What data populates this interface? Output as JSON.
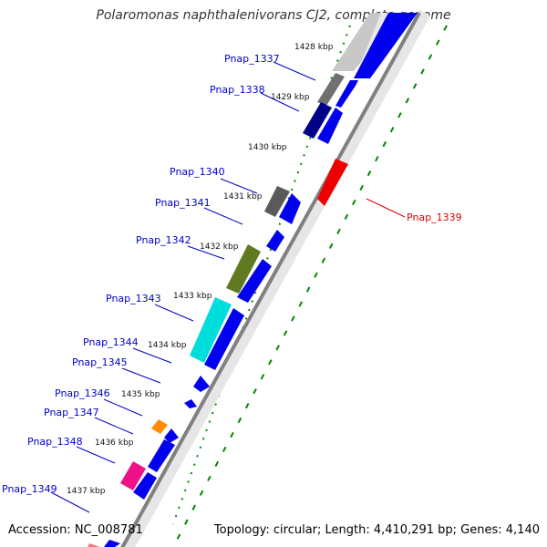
{
  "title": "Polaromonas naphthalenivorans CJ2, complete genome",
  "footer": {
    "accession": "Accession: NC_008781",
    "stats": "Topology: circular; Length: 4,410,291 bp; Genes: 4,140"
  },
  "colors": {
    "forward_cds": "#0000ee",
    "reverse_cds": "#ee0000",
    "label_blue": "#0000cc",
    "label_red": "#dd0000",
    "tick_green": "#008800",
    "backbone": "#888888"
  },
  "kbp_ticks": [
    "1428 kbp",
    "1429 kbp",
    "1430 kbp",
    "1431 kbp",
    "1432 kbp",
    "1433 kbp",
    "1434 kbp",
    "1435 kbp",
    "1436 kbp",
    "1437 kbp"
  ],
  "gene_labels": [
    {
      "id": "Pnap_1337",
      "strand": "left"
    },
    {
      "id": "Pnap_1338",
      "strand": "left"
    },
    {
      "id": "Pnap_1339",
      "strand": "right"
    },
    {
      "id": "Pnap_1340",
      "strand": "left"
    },
    {
      "id": "Pnap_1341",
      "strand": "left"
    },
    {
      "id": "Pnap_1342",
      "strand": "left"
    },
    {
      "id": "Pnap_1343",
      "strand": "left"
    },
    {
      "id": "Pnap_1344",
      "strand": "left"
    },
    {
      "id": "Pnap_1345",
      "strand": "left"
    },
    {
      "id": "Pnap_1346",
      "strand": "left"
    },
    {
      "id": "Pnap_1347",
      "strand": "left"
    },
    {
      "id": "Pnap_1348",
      "strand": "left"
    },
    {
      "id": "Pnap_1349",
      "strand": "left"
    }
  ]
}
